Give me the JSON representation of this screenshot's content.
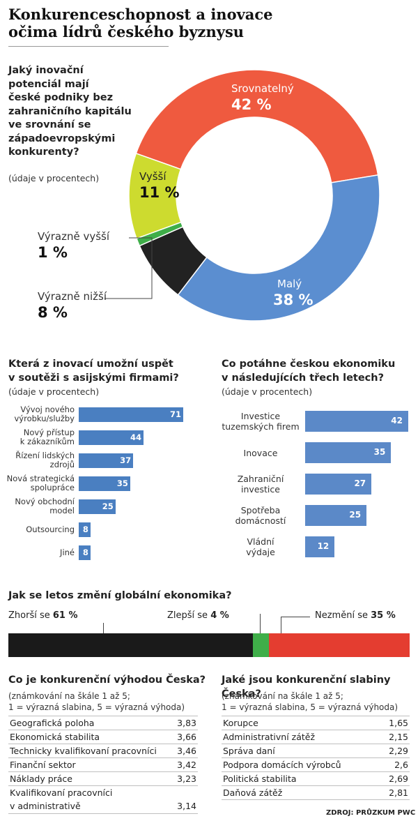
{
  "title": [
    "Konkurenceschopnost a inovace",
    "očima lídrů českého byznysu"
  ],
  "donut": {
    "question": [
      "Jaký inovační",
      "potenciál mají",
      "české podniky bez",
      "zahraničního kapitálu",
      "ve srovnání se",
      "západoevropskými",
      "konkurenty?"
    ],
    "unit_note": "(údaje v procentech)",
    "labels": {
      "srovnatelny": {
        "name": "Srovnatelný",
        "value": "42 %"
      },
      "maly": {
        "name": "Malý",
        "value": "38 %"
      },
      "vyssi": {
        "name": "Vyšší",
        "value": "11 %"
      },
      "vyrazne_vyssi": {
        "name": "Výrazně vyšší",
        "value": "1 %"
      },
      "vyrazne_nizsi": {
        "name": "Výrazně nižší",
        "value": "8 %"
      }
    }
  },
  "left_bars": {
    "question": [
      "Která z inovací umožní uspět",
      "v soutěži s asijskými firmami?"
    ],
    "unit_note": "(údaje v procentech)",
    "labels": [
      [
        "Vývoj nového",
        "výrobku/služby"
      ],
      [
        "Nový přístup",
        "k zákazníkům"
      ],
      [
        "Řízení lidských",
        "zdrojů"
      ],
      [
        "Nová strategická",
        "spolupráce"
      ],
      [
        "Nový obchodní",
        "model"
      ],
      [
        "Outsourcing"
      ],
      [
        "Jiné"
      ]
    ]
  },
  "right_bars": {
    "question": [
      "Co potáhne českou ekonomiku",
      "v následujících třech letech?"
    ],
    "unit_note": "(údaje v procentech)",
    "labels": [
      [
        "Investice",
        "tuzemských firem"
      ],
      [
        "Inovace"
      ],
      [
        "Zahraniční",
        "investice"
      ],
      [
        "Spotřeba",
        "domácností"
      ],
      [
        "Vládní",
        "výdaje"
      ]
    ]
  },
  "global": {
    "question": "Jak se letos změní globální ekonomika?",
    "worse_prefix": "Zhorší se ",
    "worse_value": "61 %",
    "better_prefix": "Zlepší se ",
    "better_value": "4 %",
    "same_prefix": "Nezmění se ",
    "same_value": "35 %"
  },
  "advantages": {
    "question": "Co je konkurenční výhodou Česka?",
    "note": [
      "(známkování na škále 1 až 5;",
      "1 = výrazná slabina, 5 = výrazná výhoda)"
    ],
    "rows": [
      {
        "name": "Geografická poloha",
        "value": "3,83"
      },
      {
        "name": "Ekonomická stabilita",
        "value": "3,66"
      },
      {
        "name": "Technicky kvalifikovaní pracovníci",
        "value": "3,46"
      },
      {
        "name": "Finanční sektor",
        "value": "3,42"
      },
      {
        "name": "Náklady práce",
        "value": "3,23"
      },
      {
        "name": "Kvalifikovaní pracovníci",
        "name2": "v administrativě",
        "value": "3,14"
      }
    ]
  },
  "weaknesses": {
    "question": "Jaké jsou konkurenční slabiny Česka?",
    "note": [
      "(známkování na škále 1 až 5;",
      "1 = výrazná slabina, 5 = výrazná výhoda)"
    ],
    "rows": [
      {
        "name": "Korupce",
        "value": "1,65"
      },
      {
        "name": "Administrativní zátěž",
        "value": "2,15"
      },
      {
        "name": "Správa daní",
        "value": "2,29"
      },
      {
        "name": "Podpora domácích výrobců",
        "value": "2,6"
      },
      {
        "name": "Politická stabilita",
        "value": "2,69"
      },
      {
        "name": "Daňová zátěž",
        "value": "2,81"
      }
    ]
  },
  "source": "ZDROJ: PRŮZKUM PWC",
  "colors": {
    "srovnatelny": "#ef5a3f",
    "maly": "#5b8ed0",
    "vyssi": "#cddb2f",
    "vyrazne_vyssi": "#3fae49",
    "vyrazne_nizsi": "#222222",
    "bar": "#4a7fc1",
    "worse": "#1a1a1a",
    "better": "#3fae49",
    "same": "#e43d30"
  },
  "chart_data": [
    {
      "type": "pie",
      "categories": [
        "Srovnatelný",
        "Malý",
        "Výrazně nižší",
        "Výrazně vyšší",
        "Vyšší"
      ],
      "values": [
        42,
        38,
        8,
        1,
        11
      ],
      "title": "Jaký inovační potenciál mají české podniky bez zahraničního kapitálu ve srovnání se západoevropskými konkurenty?"
    },
    {
      "type": "bar",
      "categories": [
        "Vývoj nového výrobku/služby",
        "Nový přístup k zákazníkům",
        "Řízení lidských zdrojů",
        "Nová strategická spolupráce",
        "Nový obchodní model",
        "Outsourcing",
        "Jiné"
      ],
      "values": [
        71,
        44,
        37,
        35,
        25,
        8,
        8
      ],
      "title": "Která z inovací umožní uspět v soutěži s asijskými firmami?"
    },
    {
      "type": "bar",
      "categories": [
        "Investice tuzemských firem",
        "Inovace",
        "Zahraniční investice",
        "Spotřeba domácností",
        "Vládní výdaje"
      ],
      "values": [
        42,
        35,
        27,
        25,
        12
      ],
      "title": "Co potáhne českou ekonomiku v následujících třech letech?"
    },
    {
      "type": "bar",
      "categories": [
        "Zhorší se",
        "Zlepší se",
        "Nezmění se"
      ],
      "values": [
        61,
        4,
        35
      ],
      "title": "Jak se letos změní globální ekonomika?"
    }
  ]
}
